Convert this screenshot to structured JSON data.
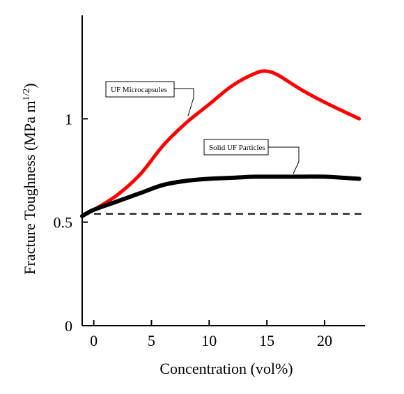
{
  "chart_data": {
    "type": "line",
    "xlabel": "Concentration (vol%)",
    "ylabel_main": "Fracture Toughness  (MPa m",
    "ylabel_sup": "1/2",
    "ylabel_close": ")",
    "xlim": [
      -1,
      23.5
    ],
    "ylim": [
      0,
      1.5
    ],
    "x_ticks": [
      0,
      5,
      10,
      15,
      20
    ],
    "x_tick_labels": [
      "0",
      "5",
      "10",
      "15",
      "20"
    ],
    "y_ticks": [
      0,
      0.5,
      1
    ],
    "y_tick_labels": [
      "0",
      "0.5",
      "1"
    ],
    "grid": false,
    "series": [
      {
        "name": "UF Microcapsules",
        "color": "#ff0000",
        "x": [
          -1,
          0,
          2,
          4,
          6,
          8,
          10,
          12,
          14,
          15,
          16,
          18,
          20,
          23
        ],
        "y": [
          0.53,
          0.56,
          0.63,
          0.73,
          0.87,
          0.98,
          1.07,
          1.16,
          1.22,
          1.23,
          1.21,
          1.14,
          1.08,
          1.0
        ]
      },
      {
        "name": "Solid UF Particles",
        "color": "#000000",
        "x": [
          -1,
          0,
          2,
          4,
          6,
          8,
          10,
          12,
          14,
          16,
          18,
          20,
          23
        ],
        "y": [
          0.53,
          0.56,
          0.6,
          0.64,
          0.68,
          0.7,
          0.71,
          0.715,
          0.72,
          0.72,
          0.72,
          0.72,
          0.71
        ]
      }
    ],
    "reference_line": {
      "y": 0.54,
      "style": "dashed",
      "color": "#000000"
    }
  }
}
